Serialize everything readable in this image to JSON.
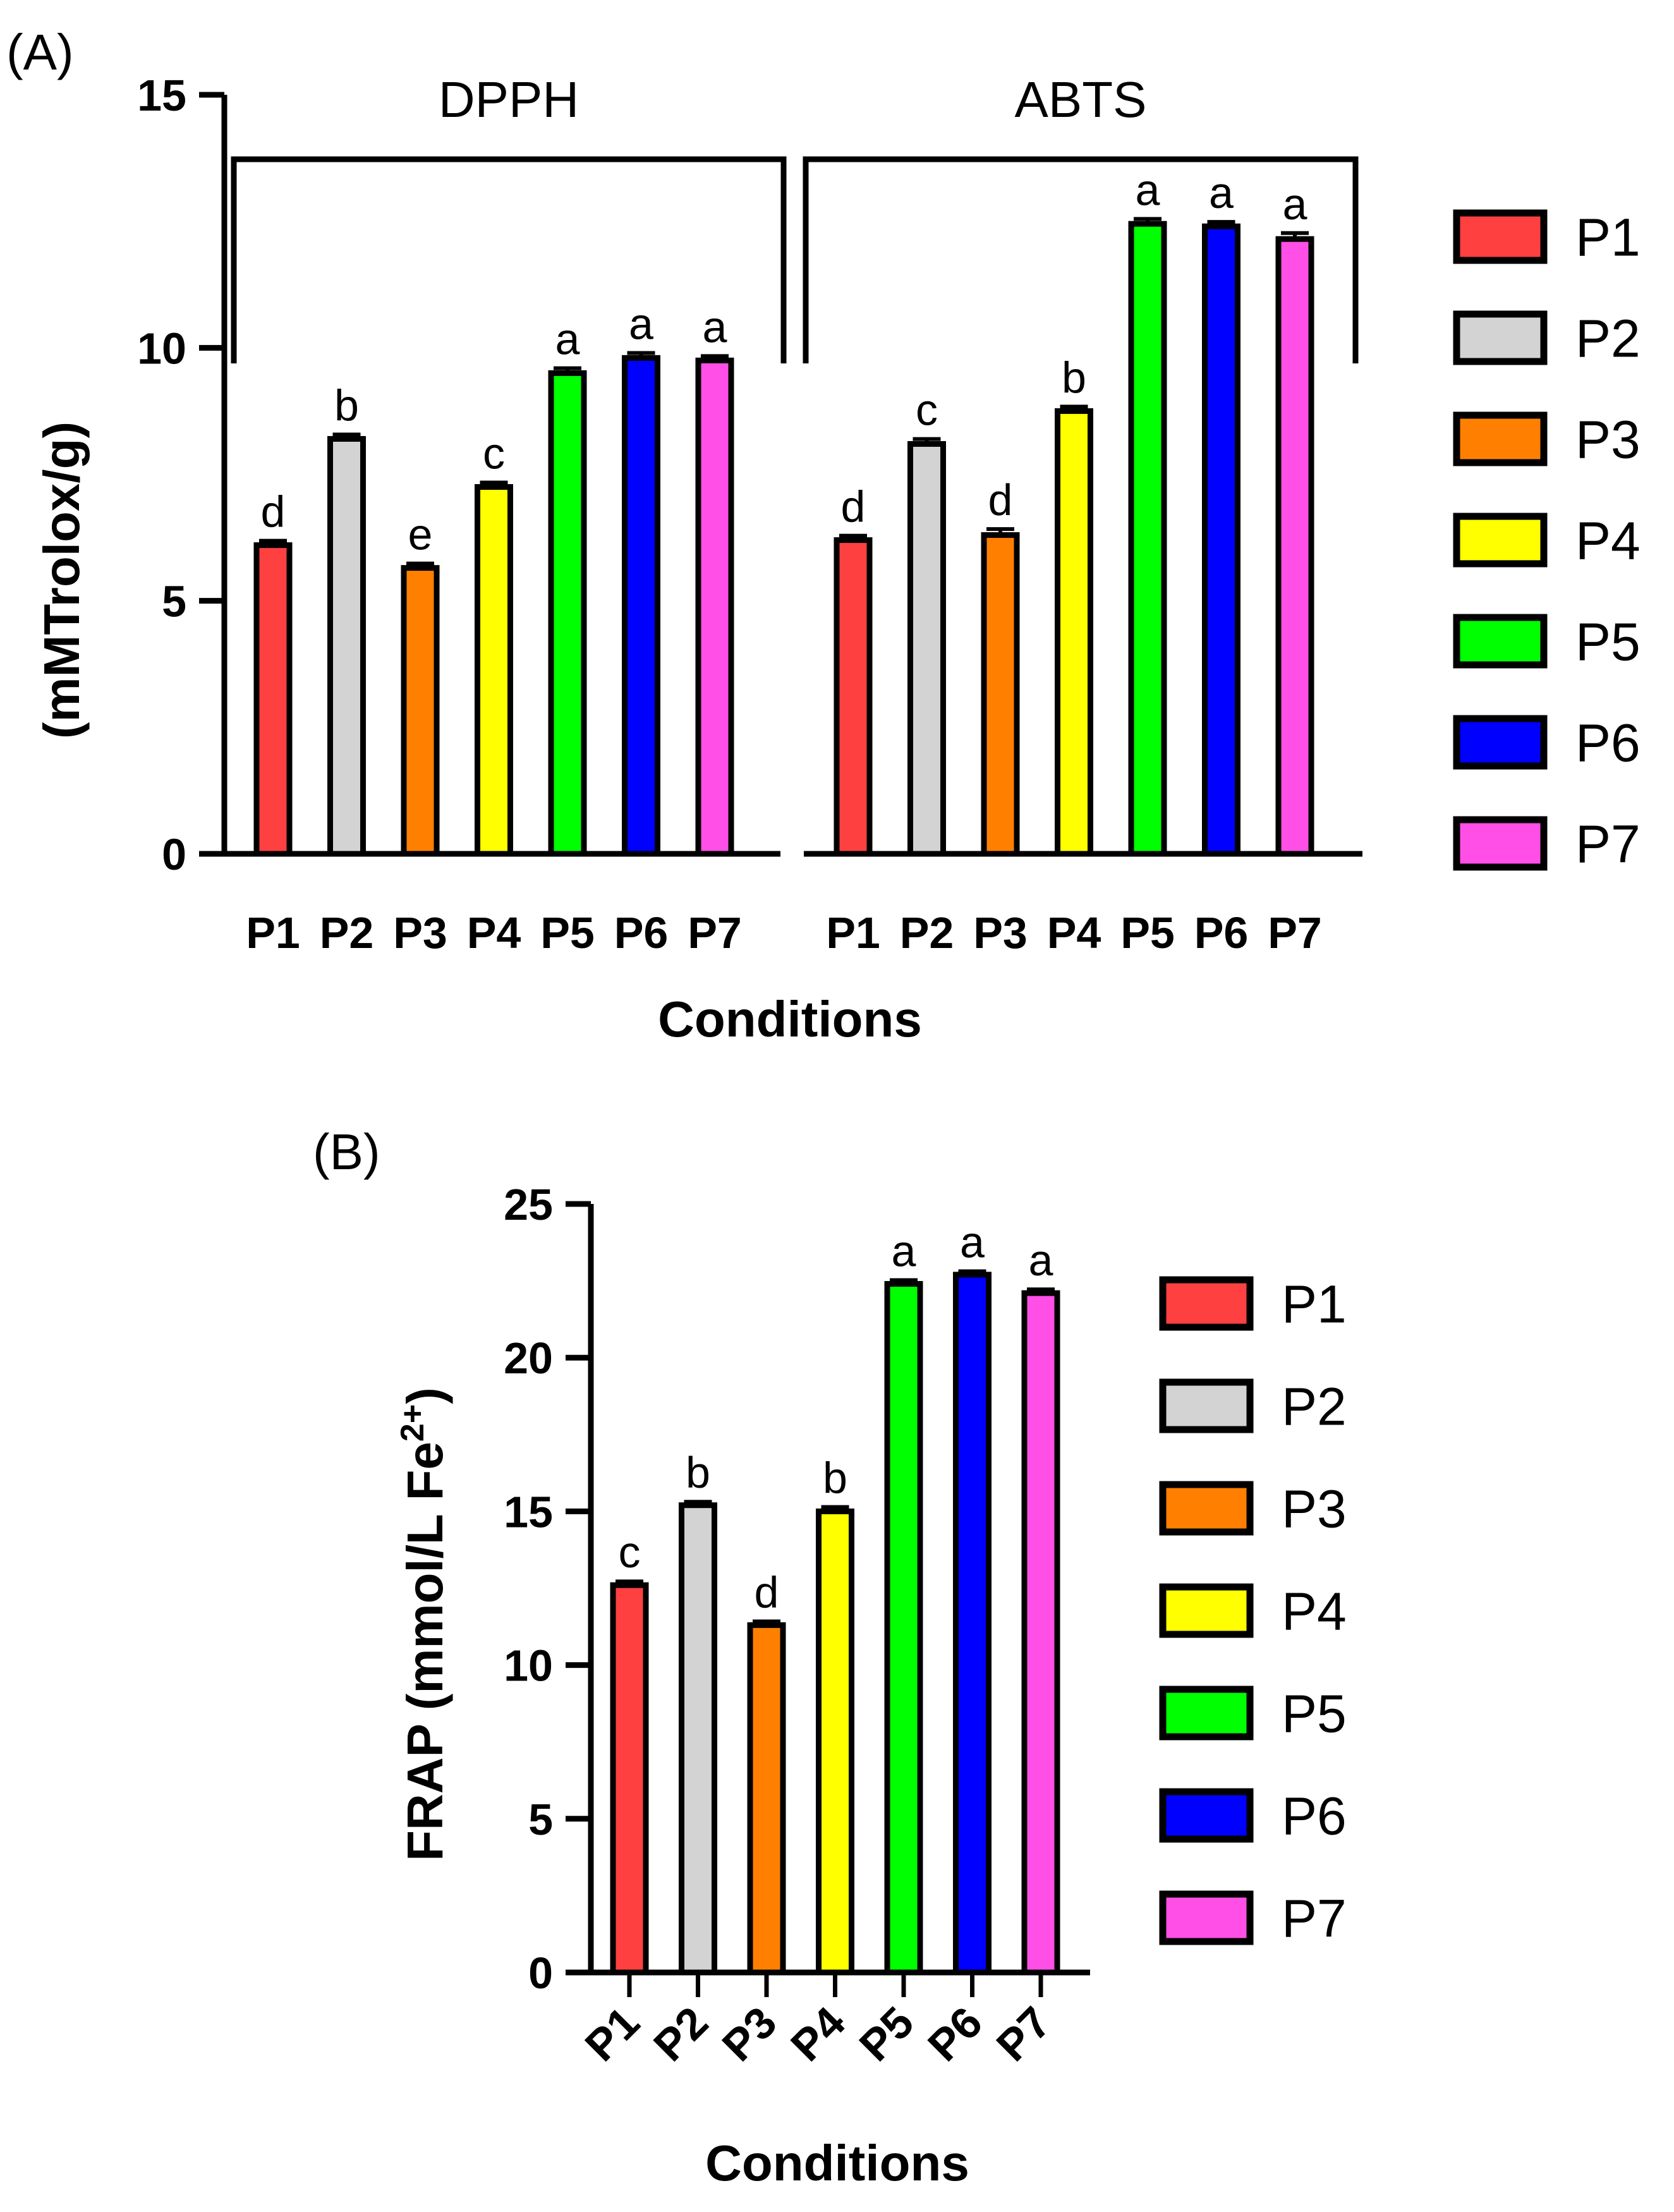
{
  "chart_data": [
    {
      "type": "bar",
      "panel": "(A)",
      "title": "",
      "ylabel": "(mMTrolox/g)",
      "xlabel": "Conditions",
      "ylim": [
        0,
        15
      ],
      "yticks": [
        0,
        5,
        10,
        15
      ],
      "categories": [
        "P1",
        "P2",
        "P3",
        "P4",
        "P5",
        "P6",
        "P7"
      ],
      "groups": [
        {
          "name": "DPPH",
          "values": [
            6.1,
            8.2,
            5.65,
            7.25,
            9.5,
            9.8,
            9.75
          ],
          "errors": [
            0.05,
            0.05,
            0.05,
            0.05,
            0.06,
            0.06,
            0.05
          ],
          "letters": [
            "d",
            "b",
            "e",
            "c",
            "a",
            "a",
            "a"
          ]
        },
        {
          "name": "ABTS",
          "values": [
            6.2,
            8.1,
            6.3,
            8.75,
            12.45,
            12.4,
            12.15
          ],
          "errors": [
            0.05,
            0.06,
            0.08,
            0.05,
            0.06,
            0.05,
            0.08
          ],
          "letters": [
            "d",
            "c",
            "d",
            "b",
            "a",
            "a",
            "a"
          ]
        }
      ],
      "legend": [
        "P1",
        "P2",
        "P3",
        "P4",
        "P5",
        "P6",
        "P7"
      ],
      "legend_position": "right"
    },
    {
      "type": "bar",
      "panel": "(B)",
      "title": "",
      "ylabel": "FRAP (mmol/L Fe",
      "ylabel_sup": "2+",
      "ylabel_end": ")",
      "xlabel": "Conditions",
      "ylim": [
        0,
        25
      ],
      "yticks": [
        0,
        5,
        10,
        15,
        20,
        25
      ],
      "categories": [
        "P1",
        "P2",
        "P3",
        "P4",
        "P5",
        "P6",
        "P7"
      ],
      "values": [
        12.6,
        15.2,
        11.3,
        15.0,
        22.4,
        22.7,
        22.1
      ],
      "errors": [
        0.06,
        0.05,
        0.06,
        0.08,
        0.06,
        0.05,
        0.06
      ],
      "letters": [
        "c",
        "b",
        "d",
        "b",
        "a",
        "a",
        "a"
      ],
      "legend": [
        "P1",
        "P2",
        "P3",
        "P4",
        "P5",
        "P6",
        "P7"
      ],
      "legend_position": "right"
    }
  ],
  "colors": {
    "P1": "#ff4040",
    "P2": "#d3d3d3",
    "P3": "#ff8000",
    "P4": "#ffff00",
    "P5": "#00ff00",
    "P6": "#0000ff",
    "P7": "#ff4fe6",
    "stroke": "#000000"
  }
}
